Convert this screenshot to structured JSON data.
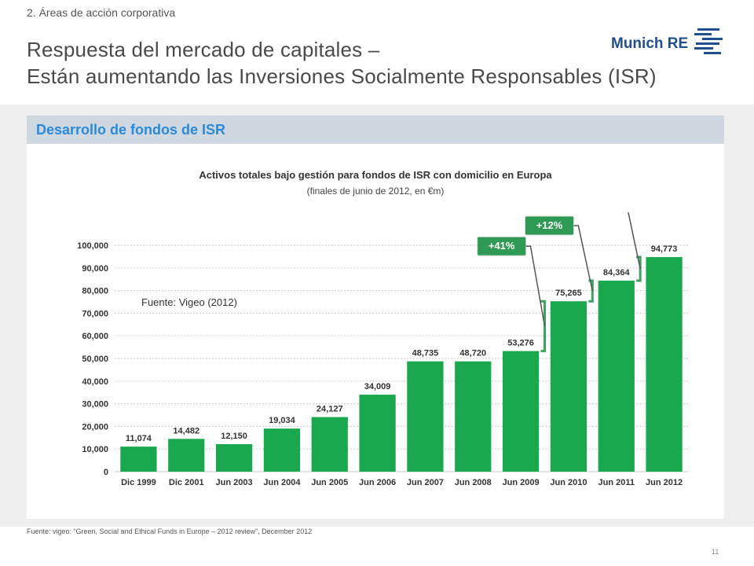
{
  "header": {
    "section": "2. Áreas de acción corporativa",
    "title_line1": "Respuesta del mercado de capitales –",
    "title_line2": "Están aumentando las Inversiones Socialmente Responsables (ISR)",
    "logo_text": "Munich RE"
  },
  "panel": {
    "heading": "Desarrollo de fondos de ISR",
    "source_inline": "Fuente: Vigeo (2012)"
  },
  "colors": {
    "bar": "#1aa84e",
    "callout": "#2f9a55",
    "bracket": "#3aa35d",
    "heading": "#2a8ad8",
    "logo": "#1f4f8f"
  },
  "chart_data": {
    "type": "bar",
    "title": "Activos totales bajo gestión para fondos de ISR con domicilio en Europa",
    "subtitle": "(finales de junio de 2012, en €m)",
    "categories": [
      "Dic  1999",
      "Dic  2001",
      "Jun 2003",
      "Jun 2004",
      "Jun 2005",
      "Jun 2006",
      "Jun 2007",
      "Jun 2008",
      "Jun 2009",
      "Jun 2010",
      "Jun 2011",
      "Jun 2012"
    ],
    "values": [
      11074,
      14482,
      12150,
      19034,
      24127,
      34009,
      48735,
      48720,
      53276,
      75265,
      84364,
      94773
    ],
    "value_labels": [
      "11,074",
      "14,482",
      "12,150",
      "19,034",
      "24,127",
      "34,009",
      "48,735",
      "48,720",
      "53,276",
      "75,265",
      "84,364",
      "94,773"
    ],
    "yticks": [
      "0",
      "10,000",
      "20,000",
      "30,000",
      "40,000",
      "50,000",
      "60,000",
      "70,000",
      "80,000",
      "90,000",
      "100,000"
    ],
    "ylim": [
      0,
      100000
    ],
    "grid": true,
    "annotations": [
      {
        "label": "+41%",
        "from_index": 8,
        "to_index": 9
      },
      {
        "label": "+12%",
        "from_index": 9,
        "to_index": 10
      },
      {
        "label": "+12%",
        "from_index": 10,
        "to_index": 11
      }
    ]
  },
  "footer": {
    "source": "Fuente: vigeo: “Green, Social and Ethical Funds in Europe – 2012 review”, December 2012",
    "page": "11"
  }
}
